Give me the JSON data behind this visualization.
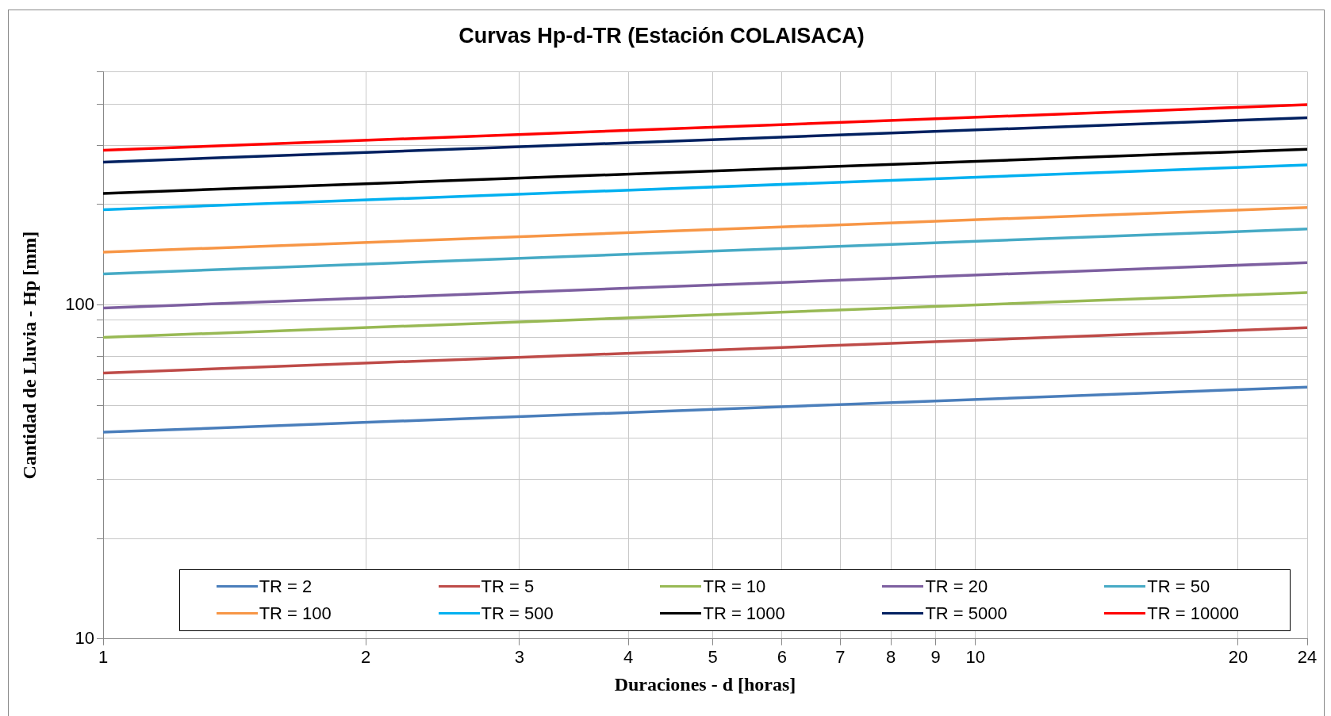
{
  "chart_data": {
    "type": "line",
    "title": "Curvas Hp-d-TR (Estación COLAISACA)",
    "xlabel": "Duraciones - d [horas]",
    "ylabel": "Cantidad de Lluvia - Hp [mm]",
    "x": [
      1,
      24
    ],
    "log": "xy",
    "xlim": [
      1,
      24
    ],
    "ylim": [
      10,
      500
    ],
    "xticks": [
      1,
      2,
      3,
      4,
      5,
      6,
      7,
      8,
      9,
      10,
      20,
      24
    ],
    "yticks": [
      10,
      {
        "value": 20,
        "label": null
      },
      {
        "value": 30,
        "label": null
      },
      {
        "value": 40,
        "label": null
      },
      {
        "value": 50,
        "label": null
      },
      {
        "value": 60,
        "label": null
      },
      {
        "value": 70,
        "label": null
      },
      {
        "value": 80,
        "label": null
      },
      {
        "value": 90,
        "label": null
      },
      100,
      {
        "value": 200,
        "label": null
      },
      {
        "value": 300,
        "label": null
      },
      {
        "value": 400,
        "label": null
      },
      {
        "value": 500,
        "label": null
      }
    ],
    "grid": true,
    "legend": "bottom",
    "marker": "none",
    "line_style": "solid",
    "series": [
      {
        "name": "TR = 2",
        "color": "#4a7ebb",
        "values": [
          41.6,
          56.8
        ]
      },
      {
        "name": "TR = 5",
        "color": "#be4b48",
        "values": [
          62.6,
          85.5
        ]
      },
      {
        "name": "TR = 10",
        "color": "#98b954",
        "values": [
          80,
          109
        ]
      },
      {
        "name": "TR = 20",
        "color": "#7d5fa0",
        "values": [
          98,
          134
        ]
      },
      {
        "name": "TR = 50",
        "color": "#46aac5",
        "values": [
          124,
          169
        ]
      },
      {
        "name": "TR = 100",
        "color": "#f79646",
        "values": [
          144,
          196
        ]
      },
      {
        "name": "TR = 500",
        "color": "#00b0f0",
        "values": [
          193,
          263
        ]
      },
      {
        "name": "TR = 1000",
        "color": "#000000",
        "values": [
          216,
          293
        ]
      },
      {
        "name": "TR = 5000",
        "color": "#002060",
        "values": [
          268,
          364
        ]
      },
      {
        "name": "TR = 10000",
        "color": "#ff0000",
        "values": [
          291,
          398
        ]
      }
    ]
  }
}
